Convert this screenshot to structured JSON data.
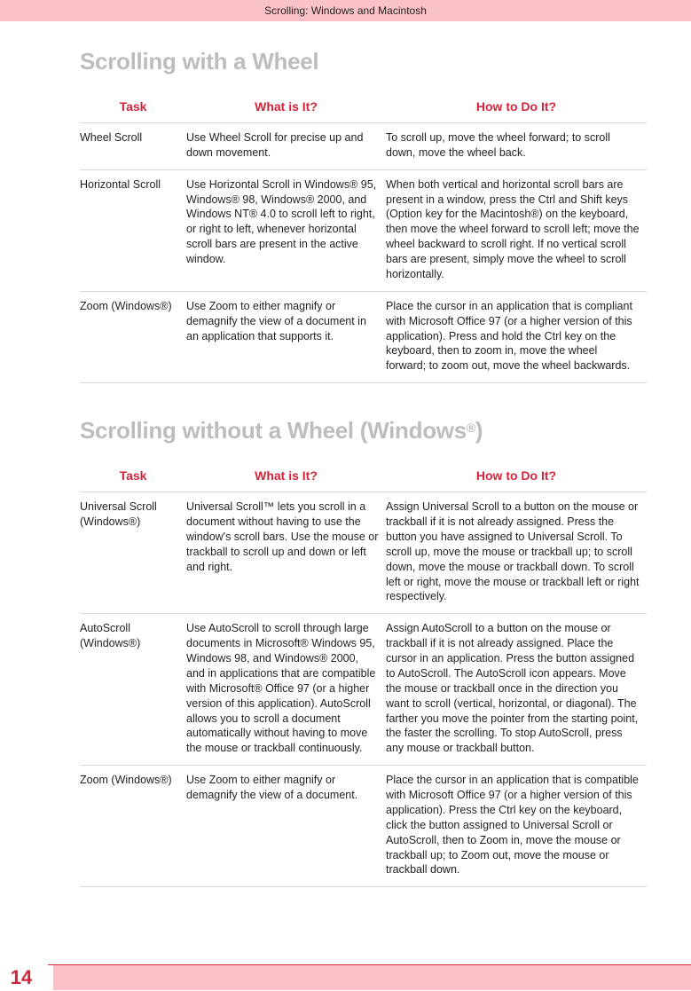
{
  "page": {
    "header_title": "Scrolling: Windows and Macintosh",
    "page_number": "14",
    "footer_bar_color": "#f9c2c9",
    "accent_color": "#d6243a",
    "heading_color": "#bdbdbd"
  },
  "section1": {
    "title": "Scrolling with a Wheel",
    "columns": {
      "task": "Task",
      "what": "What is It?",
      "how": "How to Do It?"
    },
    "rows": [
      {
        "task": "Wheel Scroll",
        "what": "Use Wheel Scroll for precise up and down movement.",
        "how": "To scroll up, move the wheel forward; to scroll down, move the wheel back."
      },
      {
        "task": "Horizontal Scroll",
        "what": "Use Horizontal Scroll in Windows® 95, Windows® 98, Windows®  2000, and Windows NT® 4.0 to scroll left to right, or right to left, whenever horizontal scroll bars are present in the active window.",
        "how": "When both vertical and horizontal scroll bars are present in a window, press the Ctrl and Shift keys (Option key for the Macintosh®) on the keyboard, then move the wheel forward to scroll left; move the wheel backward to scroll right. If no vertical scroll bars are present, simply move the wheel to scroll horizontally."
      },
      {
        "task": "Zoom (Windows®)",
        "what": "Use Zoom to either magnify or demagnify the view of a document in an application that supports it.",
        "how": "Place the cursor in an application that is compliant with Microsoft Office 97 (or a higher version of this application). Press and hold the Ctrl key on the keyboard, then to zoom in, move the wheel forward; to zoom out, move the wheel backwards."
      }
    ]
  },
  "section2": {
    "title_pre": "Scrolling without a Wheel (Windows",
    "title_post": ")",
    "columns": {
      "task": "Task",
      "what": "What is It?",
      "how": "How to Do It?"
    },
    "rows": [
      {
        "task": "Universal Scroll (Windows®)",
        "what": "Universal Scroll™ lets you scroll in a document without having to use the window's scroll bars. Use the mouse or trackball to scroll up and down or left and right.",
        "how": "Assign Universal Scroll to a button on the mouse or trackball if it is not already assigned. Press the button you have assigned to Universal Scroll. To scroll up, move the mouse or trackball up; to scroll down, move the mouse or trackball down. To scroll left or right, move the mouse or trackball left or right respectively."
      },
      {
        "task": "AutoScroll (Windows®)",
        "what": "Use AutoScroll to scroll through large documents in Microsoft® Windows 95, Windows 98, and Windows® 2000, and in applications that are compatible with Microsoft® Office 97 (or a higher version of this application). AutoScroll allows you to scroll a  document automatically without having to move the mouse or trackball continuously.",
        "how": "Assign AutoScroll to a button on the mouse or trackball if it is not already assigned. Place the cursor in an application. Press the button assigned to AutoScroll. The AutoScroll icon appears. Move the mouse or trackball once in the direction you want to scroll (vertical, horizontal, or diagonal). The farther you move the pointer from the starting point, the faster the scrolling. To stop AutoScroll, press any mouse or trackball button."
      },
      {
        "task": "Zoom (Windows®)",
        "what": "Use Zoom to either magnify or demagnify the view of a document.",
        "how": "Place the cursor in an application that is compatible with Microsoft Office 97 (or a higher version of this application). Press the Ctrl key on the keyboard, click the button assigned to Universal Scroll or AutoScroll, then to Zoom in, move the mouse or trackball up; to Zoom out, move the mouse or trackball down."
      }
    ]
  }
}
